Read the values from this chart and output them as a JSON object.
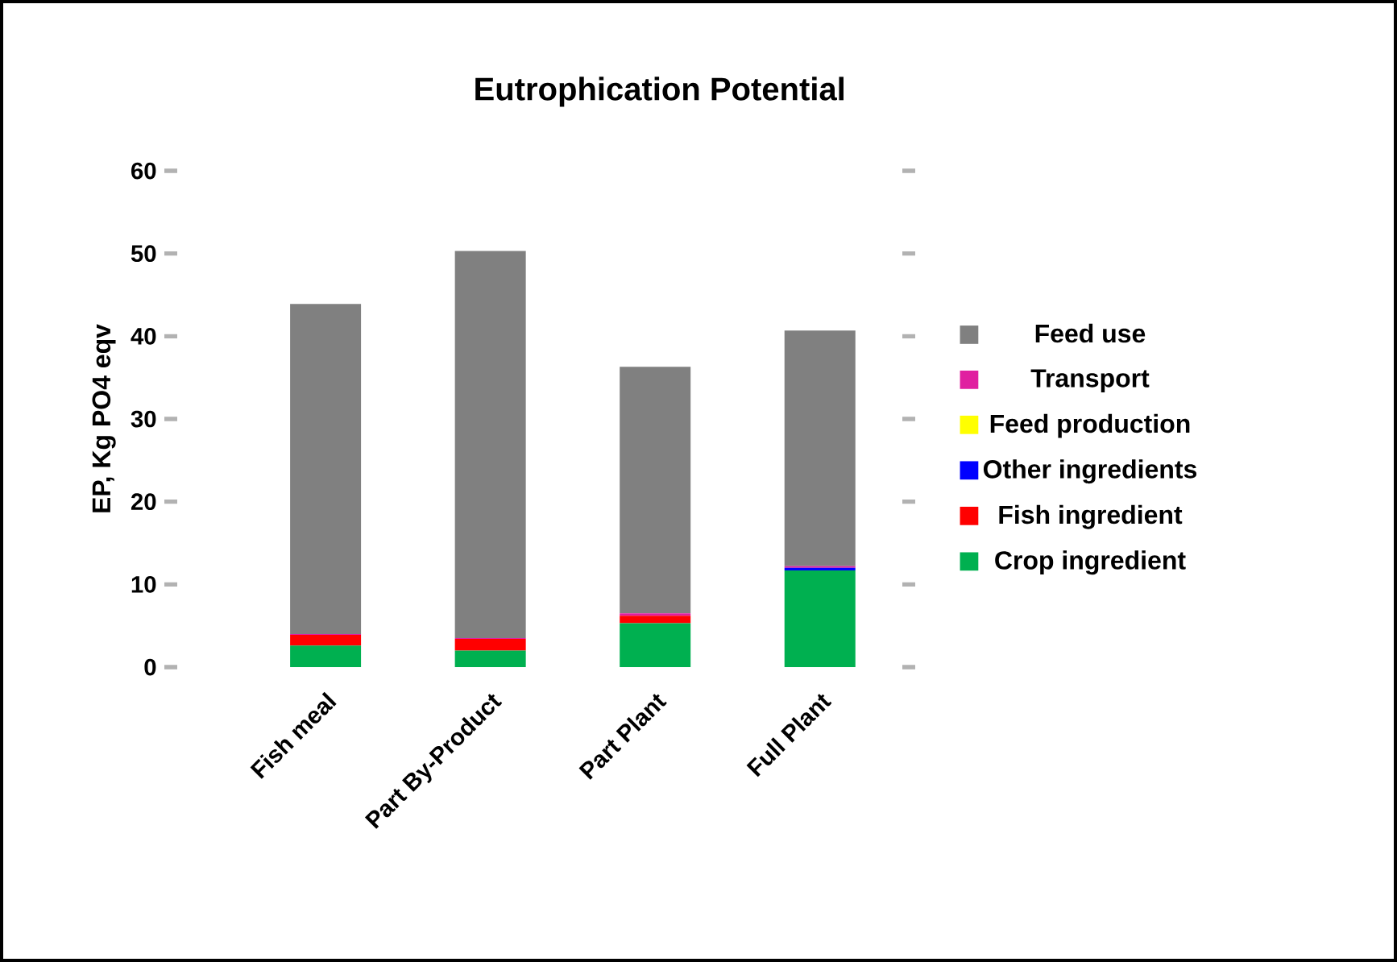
{
  "chart_data": {
    "type": "bar",
    "title": "Eutrophication Potential",
    "ylabel": "EP, Kg PO4 eqv",
    "categories": [
      "Fish meal",
      "Part By-Product",
      "Part Plant",
      "Full Plant"
    ],
    "stacked": true,
    "legend": "right",
    "ylim": [
      0,
      60
    ],
    "yticks": [
      0,
      10,
      20,
      30,
      40,
      50,
      60
    ],
    "series": [
      {
        "name": "Crop ingredient",
        "color": "#00b050",
        "values": [
          2.6,
          2.0,
          5.3,
          11.7
        ]
      },
      {
        "name": "Fish ingredient",
        "color": "#ff0000",
        "values": [
          1.3,
          1.4,
          0.9,
          0
        ]
      },
      {
        "name": "Other ingredients",
        "color": "#0000ff",
        "values": [
          0,
          0,
          0,
          0.3
        ]
      },
      {
        "name": "Feed production",
        "color": "#ffff00",
        "values": [
          0,
          0,
          0,
          0
        ]
      },
      {
        "name": "Transport",
        "color": "#e020a0",
        "values": [
          0.1,
          0.1,
          0.3,
          0.2
        ]
      },
      {
        "name": "Feed use",
        "color": "#808080",
        "values": [
          39.9,
          46.8,
          29.8,
          28.5
        ]
      }
    ]
  }
}
